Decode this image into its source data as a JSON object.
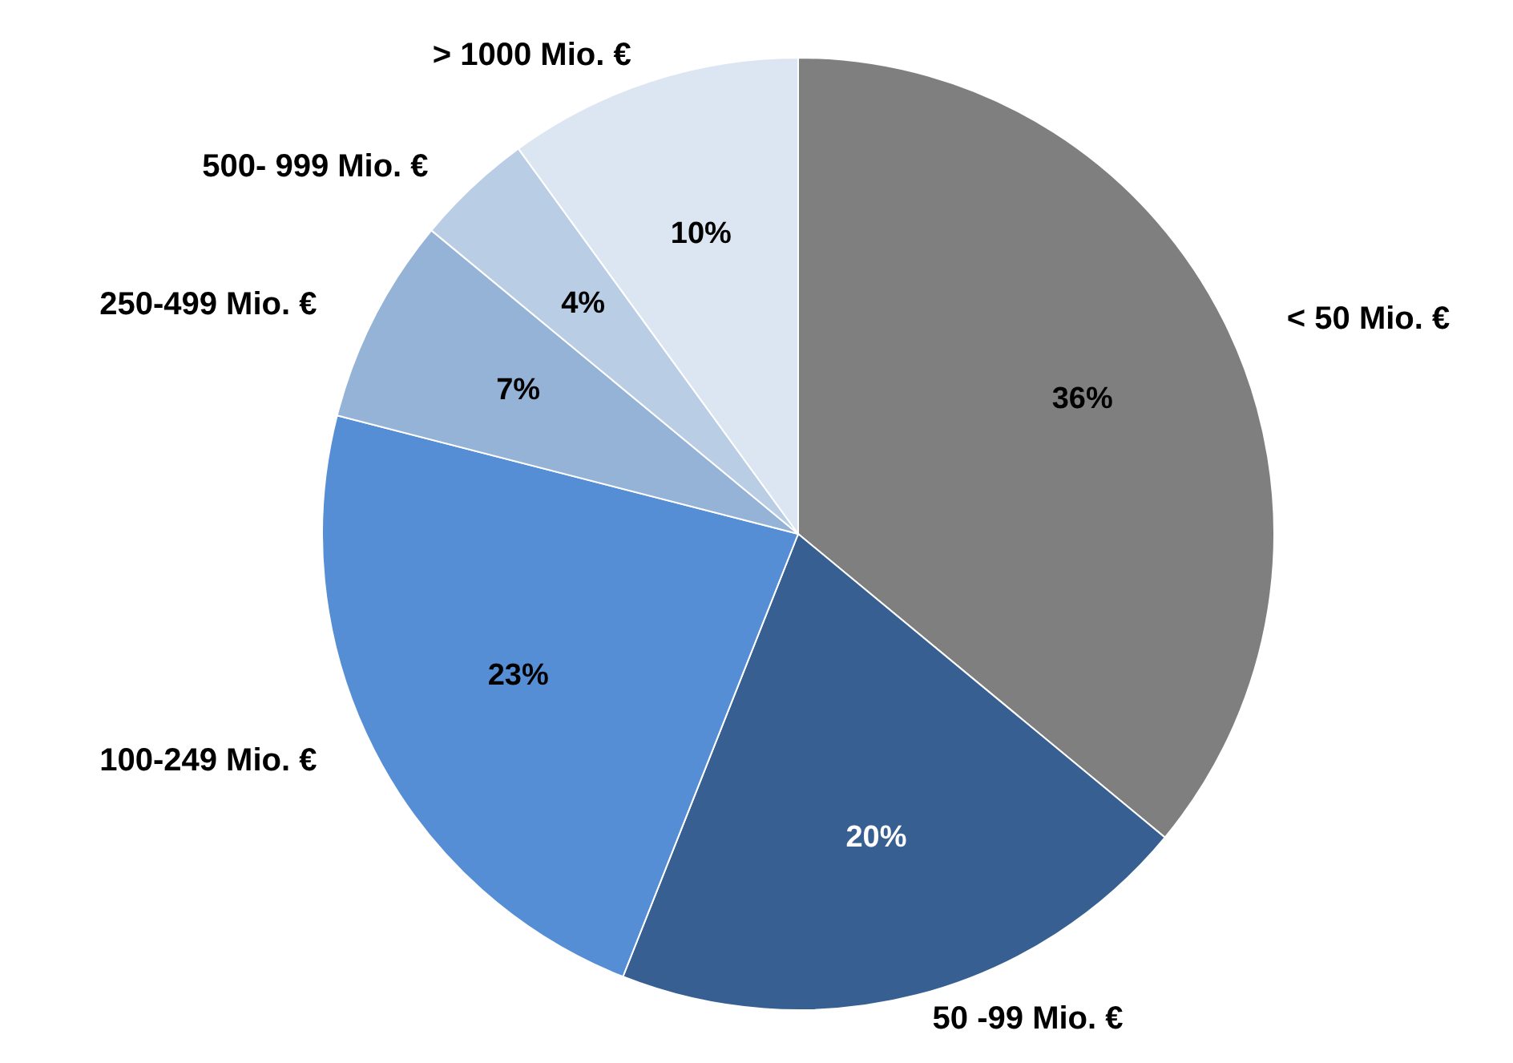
{
  "chart_data": {
    "type": "pie",
    "categories": [
      "< 50 Mio. €",
      "50 -99 Mio. €",
      "100-249 Mio. €",
      "250-499 Mio. €",
      "500- 999 Mio. €",
      "> 1000 Mio. €"
    ],
    "values": [
      36,
      20,
      23,
      7,
      4,
      10
    ],
    "colors": [
      "#7f7f7f",
      "#375f91",
      "#558ed5",
      "#95b3d7",
      "#b9cde5",
      "#dce6f2"
    ],
    "value_labels": [
      "36%",
      "20%",
      "23%",
      "7%",
      "4%",
      "10%"
    ]
  }
}
